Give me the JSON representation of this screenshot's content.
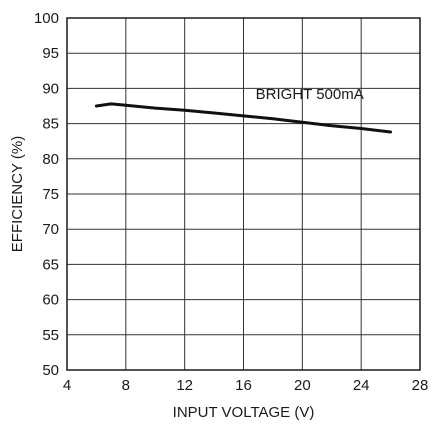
{
  "chart_data": {
    "type": "line",
    "xlabel": "INPUT VOLTAGE (V)",
    "ylabel": "EFFICIENCY (%)",
    "xlim": [
      4,
      28
    ],
    "ylim": [
      50,
      100
    ],
    "xticks": [
      4,
      8,
      12,
      16,
      20,
      24,
      28
    ],
    "yticks": [
      50,
      55,
      60,
      65,
      70,
      75,
      80,
      85,
      90,
      95,
      100
    ],
    "grid": true,
    "annotations": [
      {
        "text": "BRIGHT 500mA",
        "x": 20.5,
        "y": 88.5
      }
    ],
    "series": [
      {
        "x": [
          6,
          7,
          8,
          10,
          12,
          14,
          16,
          18,
          20,
          22,
          24,
          26
        ],
        "y": [
          87.5,
          87.8,
          87.6,
          87.2,
          86.9,
          86.5,
          86.1,
          85.7,
          85.2,
          84.7,
          84.3,
          83.8
        ]
      }
    ]
  }
}
